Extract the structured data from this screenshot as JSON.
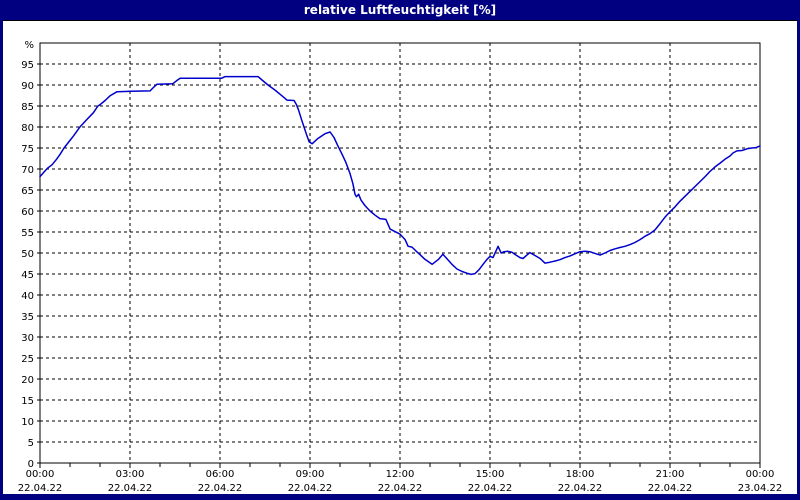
{
  "window": {
    "title": "relative Luftfeuchtigkeit [%]"
  },
  "colors": {
    "window_chrome": "#000080",
    "title_text": "#ffffff",
    "plot_background": "#ffffff",
    "grid": "#000000",
    "frame": "#000000",
    "axis_text": "#000000",
    "series_line": "#0000cc"
  },
  "chart_data": {
    "type": "line",
    "title": "relative Luftfeuchtigkeit [%]",
    "ylabel": "%",
    "xlabel": "",
    "ylim": [
      0,
      100
    ],
    "grid": "dashed",
    "legend": "none",
    "y_tick_unit_label": "%",
    "y_ticks": [
      95,
      90,
      85,
      80,
      75,
      70,
      65,
      60,
      55,
      50,
      45,
      40,
      35,
      30,
      25,
      20,
      15,
      10,
      5,
      0
    ],
    "x_major_ticks": [
      {
        "hour": 0,
        "time": "00:00",
        "date": "22.04.22"
      },
      {
        "hour": 3,
        "time": "03:00",
        "date": "22.04.22"
      },
      {
        "hour": 6,
        "time": "06:00",
        "date": "22.04.22"
      },
      {
        "hour": 9,
        "time": "09:00",
        "date": "22.04.22"
      },
      {
        "hour": 12,
        "time": "12:00",
        "date": "22.04.22"
      },
      {
        "hour": 15,
        "time": "15:00",
        "date": "22.04.22"
      },
      {
        "hour": 18,
        "time": "18:00",
        "date": "22.04.22"
      },
      {
        "hour": 21,
        "time": "21:00",
        "date": "22.04.22"
      },
      {
        "hour": 24,
        "time": "00:00",
        "date": "23.04.22"
      }
    ],
    "x_minor_tick_every_hours": 1,
    "x_range_hours": [
      0,
      24
    ],
    "series": [
      {
        "name": "relative Luftfeuchtigkeit",
        "unit": "%",
        "points": [
          [
            0,
            68.2
          ],
          [
            0.15,
            69.4
          ],
          [
            0.25,
            70.2
          ],
          [
            0.4,
            71
          ],
          [
            0.55,
            72.3
          ],
          [
            0.67,
            73.5
          ],
          [
            0.8,
            75
          ],
          [
            1,
            76.8
          ],
          [
            1.12,
            77.9
          ],
          [
            1.33,
            80
          ],
          [
            1.55,
            81.7
          ],
          [
            1.78,
            83.4
          ],
          [
            1.93,
            85
          ],
          [
            2,
            85.3
          ],
          [
            2.17,
            86.3
          ],
          [
            2.33,
            87.4
          ],
          [
            2.57,
            88.4
          ],
          [
            3,
            88.5
          ],
          [
            3.67,
            88.6
          ],
          [
            3.78,
            89.4
          ],
          [
            3.9,
            90.2
          ],
          [
            4.43,
            90.3
          ],
          [
            4.55,
            91
          ],
          [
            4.67,
            91.6
          ],
          [
            6.05,
            91.6
          ],
          [
            6.17,
            92
          ],
          [
            7.27,
            92
          ],
          [
            7.4,
            91.2
          ],
          [
            7.6,
            90
          ],
          [
            7.83,
            88.8
          ],
          [
            8,
            87.8
          ],
          [
            8.17,
            86.8
          ],
          [
            8.23,
            86.4
          ],
          [
            8.47,
            86.3
          ],
          [
            8.55,
            85.3
          ],
          [
            8.62,
            84
          ],
          [
            8.73,
            81.5
          ],
          [
            8.87,
            78.5
          ],
          [
            8.97,
            76.5
          ],
          [
            9.07,
            76
          ],
          [
            9.25,
            77.2
          ],
          [
            9.5,
            78.4
          ],
          [
            9.67,
            78.8
          ],
          [
            9.8,
            77.5
          ],
          [
            9.93,
            75.5
          ],
          [
            10.07,
            73.5
          ],
          [
            10.2,
            71.5
          ],
          [
            10.33,
            69
          ],
          [
            10.43,
            66.5
          ],
          [
            10.5,
            64
          ],
          [
            10.55,
            63.4
          ],
          [
            10.62,
            64
          ],
          [
            10.7,
            62.6
          ],
          [
            10.83,
            61.3
          ],
          [
            11,
            60
          ],
          [
            11.17,
            59
          ],
          [
            11.33,
            58.2
          ],
          [
            11.53,
            58
          ],
          [
            11.67,
            55.7
          ],
          [
            11.83,
            55.1
          ],
          [
            12,
            54.5
          ],
          [
            12.17,
            53.2
          ],
          [
            12.27,
            51.6
          ],
          [
            12.4,
            51.4
          ],
          [
            12.53,
            50.5
          ],
          [
            12.67,
            49.6
          ],
          [
            12.83,
            48.5
          ],
          [
            13.07,
            47.3
          ],
          [
            13.27,
            48.4
          ],
          [
            13.43,
            49.7
          ],
          [
            13.57,
            48.6
          ],
          [
            13.73,
            47.3
          ],
          [
            13.9,
            46.2
          ],
          [
            14.07,
            45.6
          ],
          [
            14.23,
            45.2
          ],
          [
            14.37,
            44.9
          ],
          [
            14.5,
            45.1
          ],
          [
            14.63,
            46
          ],
          [
            14.77,
            47.3
          ],
          [
            14.9,
            48.5
          ],
          [
            15,
            49.2
          ],
          [
            15.1,
            48.9
          ],
          [
            15.2,
            50.5
          ],
          [
            15.27,
            51.6
          ],
          [
            15.37,
            50
          ],
          [
            15.47,
            50.3
          ],
          [
            15.6,
            50.4
          ],
          [
            15.73,
            50.2
          ],
          [
            15.87,
            49.5
          ],
          [
            16,
            48.9
          ],
          [
            16.1,
            48.7
          ],
          [
            16.23,
            49.5
          ],
          [
            16.33,
            50.1
          ],
          [
            16.5,
            49.4
          ],
          [
            16.67,
            48.7
          ],
          [
            16.83,
            47.6
          ],
          [
            17,
            47.8
          ],
          [
            17.17,
            48.1
          ],
          [
            17.33,
            48.4
          ],
          [
            17.5,
            48.9
          ],
          [
            17.67,
            49.3
          ],
          [
            17.83,
            49.8
          ],
          [
            18,
            50.3
          ],
          [
            18.17,
            50.4
          ],
          [
            18.33,
            50.3
          ],
          [
            18.5,
            49.9
          ],
          [
            18.67,
            49.5
          ],
          [
            18.83,
            50
          ],
          [
            19,
            50.6
          ],
          [
            19.17,
            51
          ],
          [
            19.33,
            51.3
          ],
          [
            19.5,
            51.6
          ],
          [
            19.67,
            52
          ],
          [
            19.83,
            52.5
          ],
          [
            20,
            53.2
          ],
          [
            20.17,
            54
          ],
          [
            20.33,
            54.6
          ],
          [
            20.5,
            55.5
          ],
          [
            20.67,
            57
          ],
          [
            20.83,
            58.5
          ],
          [
            21,
            59.8
          ],
          [
            21.17,
            61
          ],
          [
            21.33,
            62.3
          ],
          [
            21.5,
            63.5
          ],
          [
            21.67,
            64.7
          ],
          [
            21.83,
            65.8
          ],
          [
            22,
            67
          ],
          [
            22.17,
            68.2
          ],
          [
            22.33,
            69.4
          ],
          [
            22.5,
            70.5
          ],
          [
            22.67,
            71.4
          ],
          [
            22.83,
            72.3
          ],
          [
            23,
            73.1
          ],
          [
            23.1,
            73.8
          ],
          [
            23.23,
            74.3
          ],
          [
            23.4,
            74.4
          ],
          [
            23.57,
            74.8
          ],
          [
            23.73,
            75
          ],
          [
            23.87,
            75.1
          ],
          [
            24,
            75.5
          ]
        ]
      }
    ]
  }
}
